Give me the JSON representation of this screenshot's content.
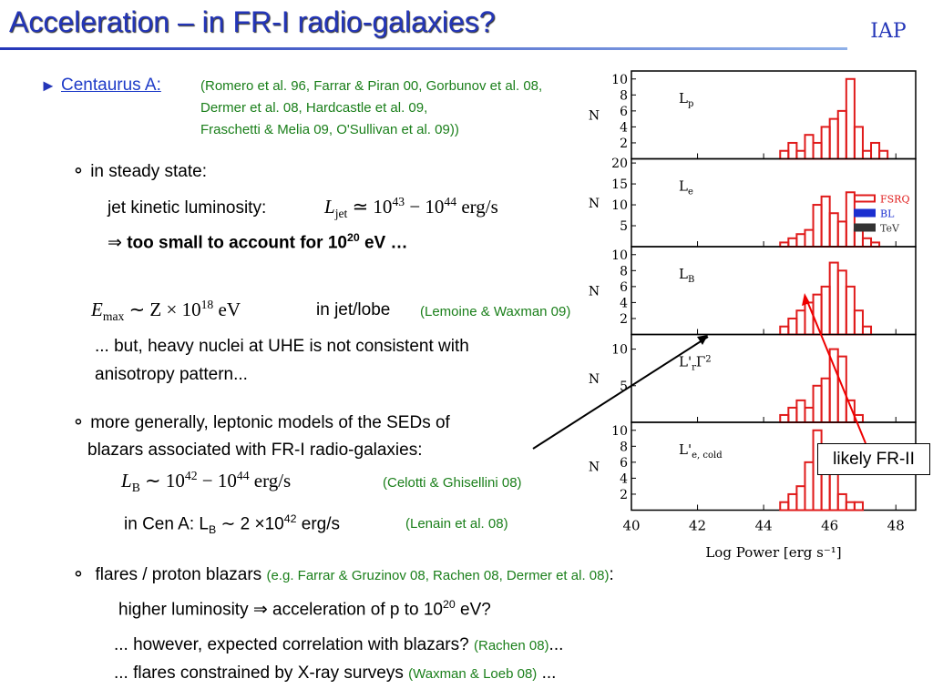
{
  "title": "Acceleration – in FR-I radio-galaxies?",
  "logo": "IAP",
  "centaurus": {
    "label": "Centaurus A:",
    "refs": [
      "(Romero et al. 96, Farrar & Piran 00, Gorbunov et al. 08,",
      "Dermer et al. 08, Hardcastle et al. 09,",
      "Fraschetti & Melia 09, O'Sullivan et al. 09))"
    ]
  },
  "steady": {
    "head": "in steady state:",
    "jet_label": "jet kinetic luminosity:",
    "jet_formula": [
      "L",
      "jet",
      "≃ 10",
      "43",
      "− 10",
      "44",
      "erg/s"
    ],
    "arrow": "⇒",
    "conclusion": [
      "too small to account for 10",
      "20",
      " eV …"
    ]
  },
  "emax": {
    "formula": [
      "E",
      "max",
      "∼ Z × 10",
      "18",
      "eV"
    ],
    "text": "in jet/lobe",
    "ref": "(Lemoine & Waxman 09)",
    "note": [
      "... but, heavy nuclei at UHE is  not consistent with",
      "anisotropy pattern..."
    ]
  },
  "leptonic": {
    "lines": [
      "more generally, leptonic models of the SEDs of",
      "blazars associated with FR-I radio-galaxies:"
    ],
    "formula": [
      "L",
      "B",
      "∼ 10",
      "42",
      "− 10",
      "44",
      "erg/s"
    ],
    "ref": "(Celotti & Ghisellini 08)",
    "cen": [
      "in Cen A: L",
      "B",
      "∼",
      "2 ×10",
      "42",
      " erg/s"
    ],
    "cen_ref": "(Lenain et al. 08)"
  },
  "flares": {
    "head": "flares / proton blazars",
    "ref": "(e.g. Farrar & Gruzinov 08, Rachen 08, Dermer et al. 08)",
    "colon": ":",
    "line1": [
      "higher luminosity ",
      "⇒",
      " acceleration of p to 10",
      "20",
      " eV?"
    ],
    "line2": "... however, expected correlation with blazars?",
    "line2_ref": "(Rachen 08)",
    "line2_end": "...",
    "line3": "... flares constrained by X-ray surveys",
    "line3_ref": "(Waxman & Loeb 08)",
    "line3_end": " ..."
  },
  "callout": "likely FR-II",
  "figure": {
    "x_label": "Log Power [erg s⁻¹]",
    "xlim": [
      40,
      48.6
    ],
    "xticks": [
      40,
      42,
      44,
      46,
      48
    ],
    "y_label": "N",
    "legend": [
      {
        "name": "FSRQ",
        "color": "#e01b1b"
      },
      {
        "name": "BL",
        "color": "#1b2fd0"
      },
      {
        "name": "TeV",
        "color": "#333333"
      }
    ],
    "bins": [
      44.5,
      44.75,
      45,
      45.25,
      45.5,
      45.75,
      46,
      46.25,
      46.5,
      46.75,
      47,
      47.25,
      47.5,
      47.75
    ],
    "panels": [
      {
        "label": [
          "L",
          "p"
        ],
        "ylim": [
          0,
          11
        ],
        "yticks": [
          2,
          4,
          6,
          8,
          10
        ],
        "fsrq": [
          1,
          2,
          1,
          3,
          2,
          4,
          5,
          6,
          10,
          4,
          1,
          2,
          1
        ]
      },
      {
        "label": [
          "L",
          "e"
        ],
        "ylim": [
          0,
          21
        ],
        "yticks": [
          5,
          10,
          15,
          20
        ],
        "fsrq": [
          1,
          2,
          3,
          4,
          10,
          12,
          8,
          6,
          13,
          4,
          2,
          1,
          0
        ]
      },
      {
        "label": [
          "L",
          "B"
        ],
        "ylim": [
          0,
          11
        ],
        "yticks": [
          2,
          4,
          6,
          8,
          10
        ],
        "fsrq": [
          1,
          2,
          3,
          4,
          5,
          6,
          9,
          8,
          6,
          3,
          1,
          0,
          0
        ]
      },
      {
        "label": [
          "L'",
          "r",
          "Γ",
          "2"
        ],
        "ylim": [
          0,
          12
        ],
        "yticks": [
          5,
          10
        ],
        "fsrq": [
          1,
          2,
          3,
          2,
          5,
          6,
          10,
          9,
          3,
          1,
          0,
          0,
          0
        ]
      },
      {
        "label": [
          "L'",
          "e, cold"
        ],
        "ylim": [
          0,
          11
        ],
        "yticks": [
          2,
          4,
          6,
          8,
          10
        ],
        "fsrq": [
          1,
          2,
          3,
          6,
          10,
          8,
          6,
          2,
          1,
          1,
          0,
          0,
          0
        ]
      }
    ]
  }
}
